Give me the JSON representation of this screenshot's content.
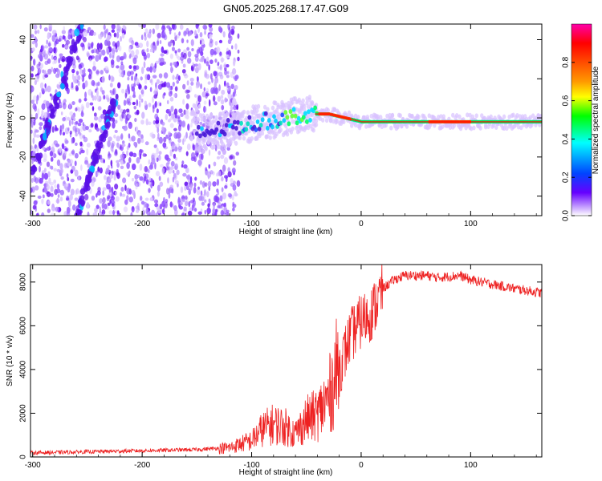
{
  "title": "GN05.2025.268.17.47.G09",
  "chart_data": [
    {
      "type": "heatmap",
      "xlabel": "Height of straight line (km)",
      "ylabel": "Frequency (Hz)",
      "xlim": [
        -302,
        165
      ],
      "ylim": [
        -50,
        48
      ],
      "xticks": [
        -300,
        -200,
        -100,
        0,
        100
      ],
      "yticks": [
        -40,
        -20,
        0,
        20,
        40
      ],
      "colorbar": {
        "label": "Normalized spectral amplitude",
        "range": [
          0,
          1
        ],
        "ticks": [
          0.0,
          0.2,
          0.4,
          0.6,
          0.8
        ],
        "colormap": [
          "#ff00aa",
          "#ff0000",
          "#ff8800",
          "#ffff00",
          "#00ff00",
          "#00ffff",
          "#0044ff",
          "#6600ff",
          "#ffffff"
        ]
      },
      "features": [
        {
          "name": "diagonal track",
          "x": [
            -300,
            -255
          ],
          "y": [
            -28,
            48
          ]
        },
        {
          "name": "diagonal track",
          "x": [
            -260,
            -225
          ],
          "y": [
            -50,
            10
          ]
        },
        {
          "name": "carrier",
          "x": [
            -150,
            -50,
            -30,
            0,
            165
          ],
          "y": [
            -8,
            2,
            2,
            -2,
            -2
          ]
        }
      ]
    },
    {
      "type": "line",
      "xlabel": "Height of straight line (km)",
      "ylabel": "SNR (10 * v/v)",
      "xlim": [
        -302,
        165
      ],
      "ylim": [
        0,
        8800
      ],
      "xticks": [
        -300,
        -200,
        -100,
        0,
        100
      ],
      "yticks": [
        0,
        2000,
        4000,
        6000,
        8000
      ],
      "color": "#ee2222",
      "x": [
        -302,
        -250,
        -200,
        -150,
        -120,
        -100,
        -90,
        -80,
        -70,
        -60,
        -50,
        -40,
        -30,
        -20,
        -10,
        0,
        10,
        20,
        30,
        40,
        50,
        60,
        70,
        80,
        90,
        100,
        120,
        140,
        165
      ],
      "y": [
        150,
        200,
        250,
        300,
        400,
        700,
        1200,
        1400,
        1300,
        1000,
        1600,
        1800,
        2500,
        4000,
        5500,
        6200,
        6600,
        7700,
        8100,
        8300,
        8300,
        8300,
        8200,
        8250,
        8300,
        8100,
        7900,
        7700,
        7500
      ]
    }
  ]
}
